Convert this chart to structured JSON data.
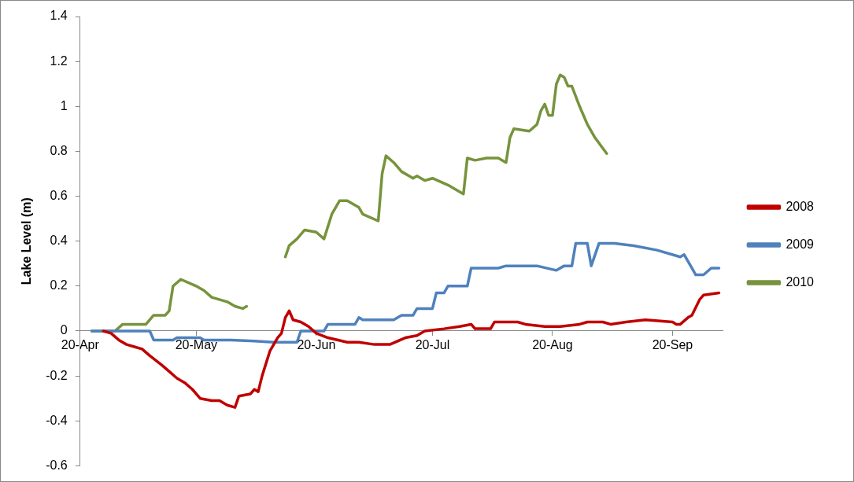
{
  "chart_data": {
    "type": "line",
    "ylabel": "Lake Level (m)",
    "xlim": [
      "--04-20",
      "--10-03"
    ],
    "xticks": [
      {
        "value": "--04-20",
        "label": "20-Apr"
      },
      {
        "value": "--05-20",
        "label": "20-May"
      },
      {
        "value": "--06-20",
        "label": "20-Jun"
      },
      {
        "value": "--07-20",
        "label": "20-Jul"
      },
      {
        "value": "--08-20",
        "label": "20-Aug"
      },
      {
        "value": "--09-20",
        "label": "20-Sep"
      }
    ],
    "ylim": [
      -0.6,
      1.4
    ],
    "yticks": [
      -0.6,
      -0.4,
      -0.2,
      0,
      0.2,
      0.4,
      0.6,
      0.8,
      1,
      1.2,
      1.4
    ],
    "grid": false,
    "legend": "right",
    "marker": "none",
    "line_style": "solid",
    "series": [
      {
        "name": "2008",
        "color": "#c00000",
        "x": [
          "--04-26",
          "--04-28",
          "--04-30",
          "--05-02",
          "--05-04",
          "--05-06",
          "--05-08",
          "--05-11",
          "--05-13",
          "--05-15",
          "--05-17",
          "--05-19",
          "--05-21",
          "--05-24",
          "--05-26",
          "--05-28",
          "--05-30",
          "--05-31",
          "--06-03",
          "--06-04",
          "--06-05",
          "--06-06",
          "--06-08",
          "--06-10",
          "--06-11",
          "--06-12",
          "--06-13",
          "--06-14",
          "--06-16",
          "--06-18",
          "--06-20",
          "--06-23",
          "--06-28",
          "--07-01",
          "--07-05",
          "--07-09",
          "--07-13",
          "--07-16",
          "--07-18",
          "--07-23",
          "--07-27",
          "--07-30",
          "--07-31",
          "--08-04",
          "--08-05",
          "--08-11",
          "--08-13",
          "--08-18",
          "--08-22",
          "--08-27",
          "--08-29",
          "--09-02",
          "--09-04",
          "--09-08",
          "--09-13",
          "--09-20",
          "--09-21",
          "--09-22",
          "--09-24",
          "--09-25",
          "--09-27",
          "--09-28",
          "--10-02"
        ],
        "values": [
          0,
          -0.01,
          -0.04,
          -0.06,
          -0.07,
          -0.08,
          -0.11,
          -0.15,
          -0.18,
          -0.21,
          -0.23,
          -0.26,
          -0.3,
          -0.31,
          -0.31,
          -0.33,
          -0.34,
          -0.29,
          -0.28,
          -0.26,
          -0.27,
          -0.2,
          -0.09,
          -0.03,
          -0.01,
          0.06,
          0.09,
          0.05,
          0.04,
          0.02,
          -0.01,
          -0.03,
          -0.05,
          -0.05,
          -0.06,
          -0.06,
          -0.03,
          -0.02,
          0,
          0.01,
          0.02,
          0.03,
          0.01,
          0.01,
          0.04,
          0.04,
          0.03,
          0.02,
          0.02,
          0.03,
          0.04,
          0.04,
          0.03,
          0.04,
          0.05,
          0.04,
          0.03,
          0.03,
          0.06,
          0.07,
          0.14,
          0.16,
          0.17
        ]
      },
      {
        "name": "2009",
        "color": "#4f81bd",
        "x": [
          "--04-23",
          "--05-08",
          "--05-09",
          "--05-14",
          "--05-15",
          "--05-21",
          "--05-22",
          "--05-29",
          "--06-04",
          "--06-09",
          "--06-15",
          "--06-16",
          "--06-22",
          "--06-23",
          "--06-30",
          "--07-01",
          "--07-02",
          "--07-10",
          "--07-12",
          "--07-15",
          "--07-16",
          "--07-20",
          "--07-21",
          "--07-23",
          "--07-24",
          "--07-29",
          "--07-30",
          "--08-06",
          "--08-08",
          "--08-16",
          "--08-21",
          "--08-23",
          "--08-25",
          "--08-26",
          "--08-29",
          "--08-30",
          "--09-01",
          "--09-05",
          "--09-10",
          "--09-16",
          "--09-22",
          "--09-23",
          "--09-25",
          "--09-26",
          "--09-28",
          "--09-30",
          "--10-02"
        ],
        "values": [
          0,
          0,
          -0.04,
          -0.04,
          -0.03,
          -0.03,
          -0.04,
          -0.04,
          -0.045,
          -0.05,
          -0.05,
          0,
          0,
          0.03,
          0.03,
          0.06,
          0.05,
          0.05,
          0.07,
          0.07,
          0.1,
          0.1,
          0.17,
          0.17,
          0.2,
          0.2,
          0.28,
          0.28,
          0.29,
          0.29,
          0.27,
          0.29,
          0.29,
          0.39,
          0.39,
          0.29,
          0.39,
          0.39,
          0.38,
          0.36,
          0.33,
          0.34,
          0.28,
          0.25,
          0.25,
          0.28,
          0.28
        ]
      },
      {
        "name": "2010",
        "color": "#77933c",
        "x": [
          "--04-23",
          "--04-29",
          "--05-01",
          "--05-07",
          "--05-09",
          "--05-12",
          "--05-13",
          "--05-14",
          "--05-16",
          "--05-20",
          "--05-22",
          "--05-24",
          "--05-28",
          "--05-30",
          "--06-01",
          "--06-02",
          "--06-06",
          "--06-12",
          "--06-13",
          "--06-15",
          "--06-17",
          "--06-20",
          "--06-22",
          "--06-24",
          "--06-26",
          "--06-28",
          "--07-01",
          "--07-02",
          "--07-06",
          "--07-07",
          "--07-08",
          "--07-10",
          "--07-12",
          "--07-15",
          "--07-16",
          "--07-18",
          "--07-20",
          "--07-24",
          "--07-28",
          "--07-29",
          "--07-31",
          "--08-03",
          "--08-06",
          "--08-08",
          "--08-09",
          "--08-10",
          "--08-14",
          "--08-16",
          "--08-17",
          "--08-18",
          "--08-19",
          "--08-20",
          "--08-21",
          "--08-22",
          "--08-23",
          "--08-24",
          "--08-25",
          "--08-27",
          "--08-29",
          "--08-31",
          "--09-03"
        ],
        "values": [
          0,
          0,
          0.03,
          0.03,
          0.07,
          0.07,
          0.09,
          0.2,
          0.23,
          0.2,
          0.18,
          0.15,
          0.13,
          0.11,
          0.1,
          0.11,
          null,
          0.33,
          0.38,
          0.41,
          0.45,
          0.44,
          0.41,
          0.52,
          0.58,
          0.58,
          0.55,
          0.52,
          0.49,
          0.7,
          0.78,
          0.75,
          0.71,
          0.68,
          0.69,
          0.67,
          0.68,
          0.65,
          0.61,
          0.77,
          0.76,
          0.77,
          0.77,
          0.75,
          0.86,
          0.9,
          0.89,
          0.92,
          0.98,
          1.01,
          0.96,
          0.96,
          1.1,
          1.14,
          1.13,
          1.09,
          1.09,
          1,
          0.92,
          0.86,
          0.79
        ]
      }
    ]
  }
}
